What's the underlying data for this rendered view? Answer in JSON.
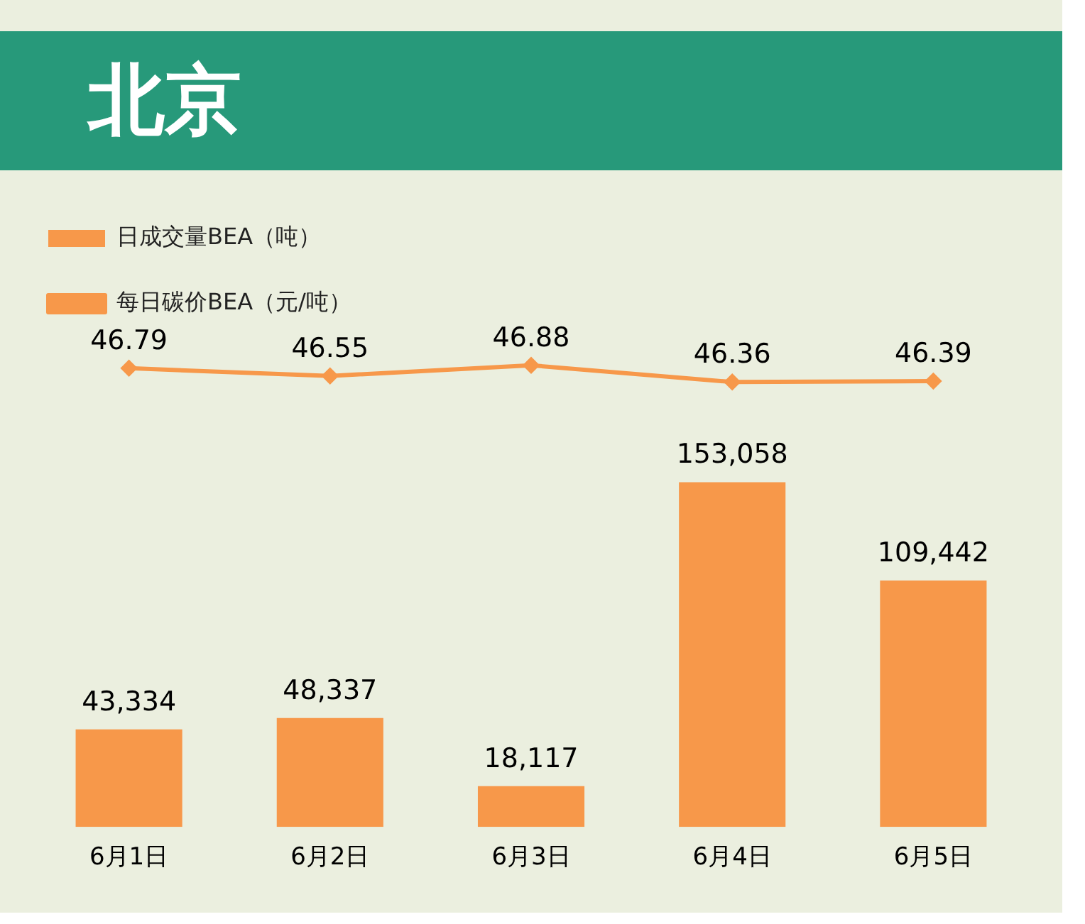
{
  "chart_data": [
    {
      "type": "line",
      "title": "北京",
      "categories": [
        null,
        null,
        null,
        null,
        null
      ],
      "series": [
        {
          "name": "每日碳价BEA（元/吨）",
          "color": "#f7984a",
          "values": [
            46.79,
            46.55,
            46.88,
            46.36,
            46.39
          ]
        }
      ],
      "data_labels": true,
      "legend": "top left",
      "tick_labels": false,
      "marker": "diamond"
    },
    {
      "type": "bar",
      "categories": [
        "6月1日",
        "6月2日",
        "6月3日",
        "6月4日",
        "6月5日"
      ],
      "series": [
        {
          "name": "日成交量BEA（吨）",
          "color": "#f7984a",
          "values": [
            43334,
            48337,
            18117,
            153058,
            109442
          ],
          "value_labels": [
            "43,334",
            "48,337",
            "18,117",
            "153,058",
            "109,442"
          ]
        }
      ],
      "legend": "top left",
      "tick_labels": "x",
      "grid": false
    }
  ]
}
